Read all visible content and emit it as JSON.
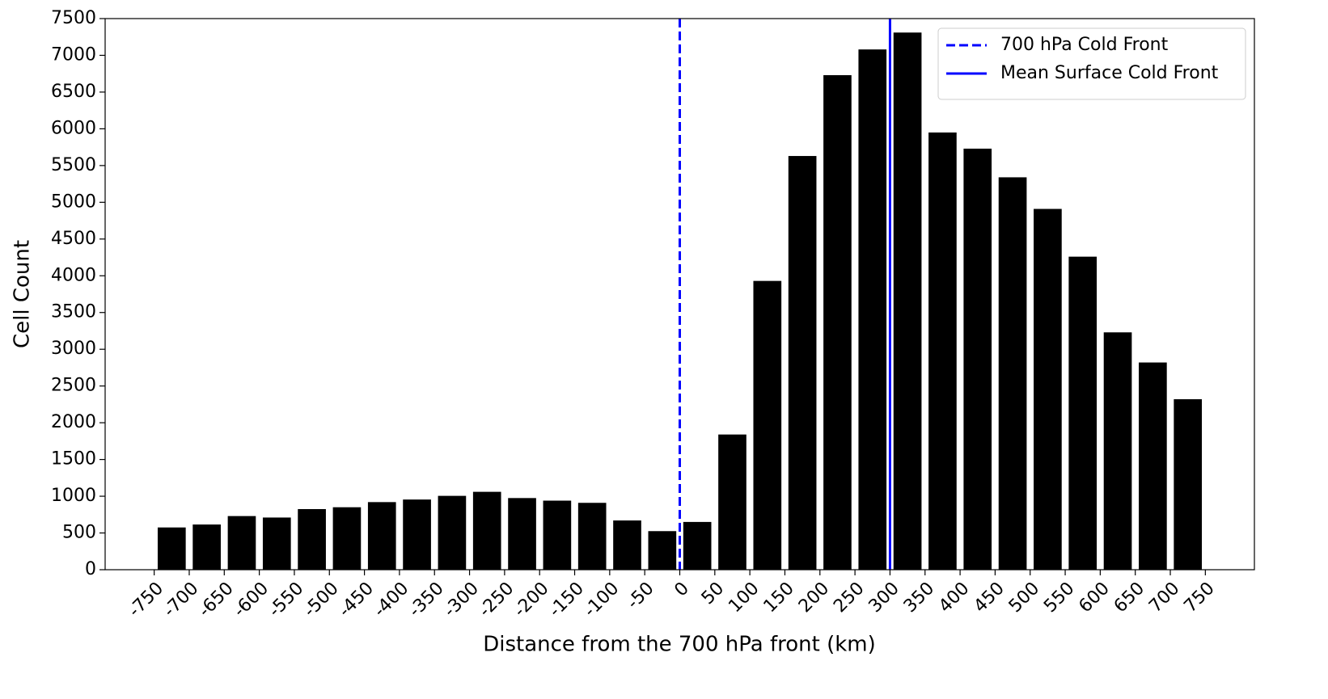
{
  "chart_data": {
    "type": "bar",
    "x_label": "Distance from the 700 hPa front (km)",
    "y_label": "Cell Count",
    "x": [
      -725,
      -675,
      -625,
      -575,
      -525,
      -475,
      -425,
      -375,
      -325,
      -275,
      -225,
      -175,
      -125,
      -75,
      -25,
      25,
      75,
      125,
      175,
      225,
      275,
      325,
      375,
      425,
      475,
      525,
      575,
      625,
      675,
      725
    ],
    "values": [
      575,
      615,
      730,
      710,
      825,
      850,
      920,
      955,
      1005,
      1060,
      975,
      940,
      910,
      670,
      525,
      650,
      1840,
      3930,
      5630,
      6730,
      7080,
      7310,
      5950,
      5730,
      5340,
      4910,
      4260,
      3230,
      2820,
      2320
    ],
    "color": "#000000",
    "xlim": [
      -820,
      820
    ],
    "xticks": [
      -750,
      -700,
      -650,
      -600,
      -550,
      -500,
      -450,
      -400,
      -350,
      -300,
      -250,
      -200,
      -150,
      -100,
      -50,
      0,
      50,
      100,
      150,
      200,
      250,
      300,
      350,
      400,
      450,
      500,
      550,
      600,
      650,
      700,
      750
    ],
    "ylim": [
      0,
      7500
    ],
    "yticks": [
      0,
      500,
      1000,
      1500,
      2000,
      2500,
      3000,
      3500,
      4000,
      4500,
      5000,
      5500,
      6000,
      6500,
      7000,
      7500
    ],
    "lines": [
      {
        "name": "700 hPa Cold Front",
        "x": 0,
        "color": "#0000ff",
        "style": "dashed"
      },
      {
        "name": "Mean Surface Cold Front",
        "x": 300,
        "color": "#0000ff",
        "style": "solid"
      }
    ],
    "legend": "upper right"
  }
}
